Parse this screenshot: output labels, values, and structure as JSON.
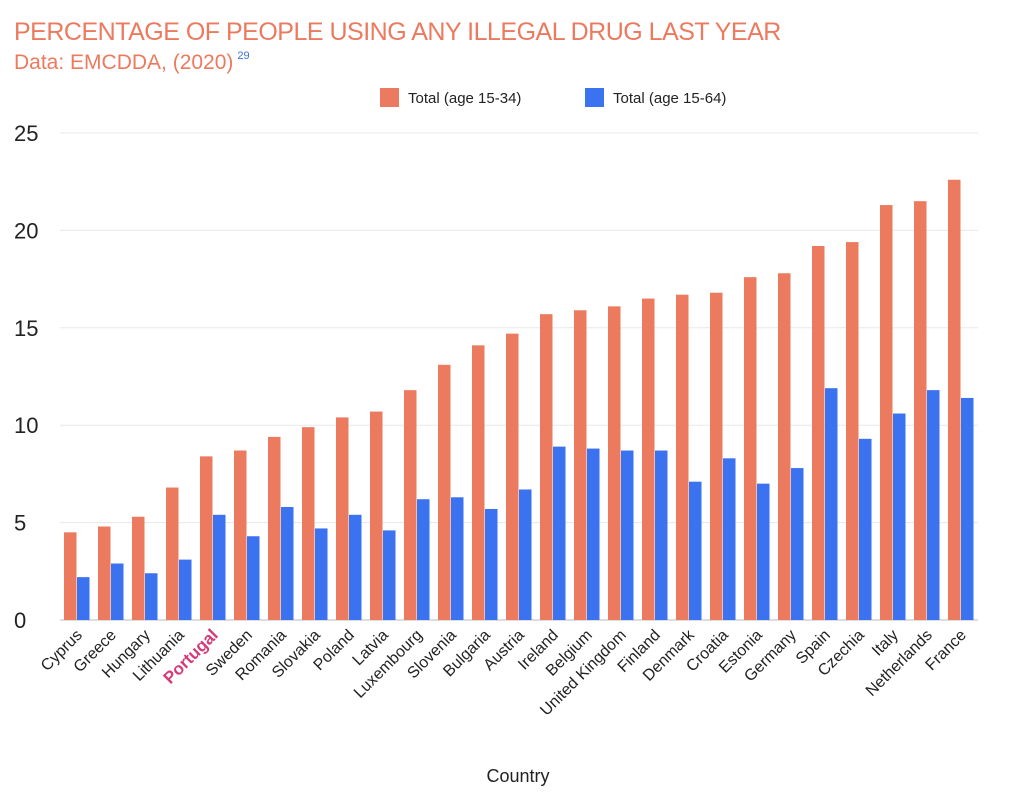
{
  "chart_data": {
    "type": "bar",
    "title": "PERCENTAGE OF PEOPLE USING ANY ILLEGAL DRUG LAST YEAR",
    "subtitle": "Data: EMCDDA, (2020)",
    "footnote": "29",
    "xlabel": "Country",
    "ylabel": "",
    "ylim": [
      0,
      25
    ],
    "yticks": [
      "0",
      "5",
      "10",
      "15",
      "20",
      "25"
    ],
    "grid": true,
    "legend_position": "top",
    "highlighted_category": "Portugal",
    "highlight_color": "#d63a78",
    "categories": [
      "Cyprus",
      "Greece",
      "Hungary",
      "Lithuania",
      "Portugal",
      "Sweden",
      "Romania",
      "Slovakia",
      "Poland",
      "Latvia",
      "Luxembourg",
      "Slovenia",
      "Bulgaria",
      "Austria",
      "Ireland",
      "Belgium",
      "United Kingdom",
      "Finland",
      "Denmark",
      "Croatia",
      "Estonia",
      "Germany",
      "Spain",
      "Czechia",
      "Italy",
      "Netherlands",
      "France"
    ],
    "series": [
      {
        "name": "Total (age 15-34)",
        "color": "#ec7a5e",
        "values": [
          4.5,
          4.8,
          5.3,
          6.8,
          8.4,
          8.7,
          9.4,
          9.9,
          10.4,
          10.7,
          11.8,
          13.1,
          14.1,
          14.7,
          15.7,
          15.9,
          16.1,
          16.5,
          16.7,
          16.8,
          17.6,
          17.8,
          19.2,
          19.4,
          21.3,
          21.5,
          22.6
        ]
      },
      {
        "name": "Total (age 15-64)",
        "color": "#3b72f0",
        "values": [
          2.2,
          2.9,
          2.4,
          3.1,
          5.4,
          4.3,
          5.8,
          4.7,
          5.4,
          4.6,
          6.2,
          6.3,
          5.7,
          6.7,
          8.9,
          8.8,
          8.7,
          8.7,
          7.1,
          8.3,
          7.0,
          7.8,
          11.9,
          9.3,
          10.6,
          11.8,
          11.4
        ]
      }
    ]
  }
}
